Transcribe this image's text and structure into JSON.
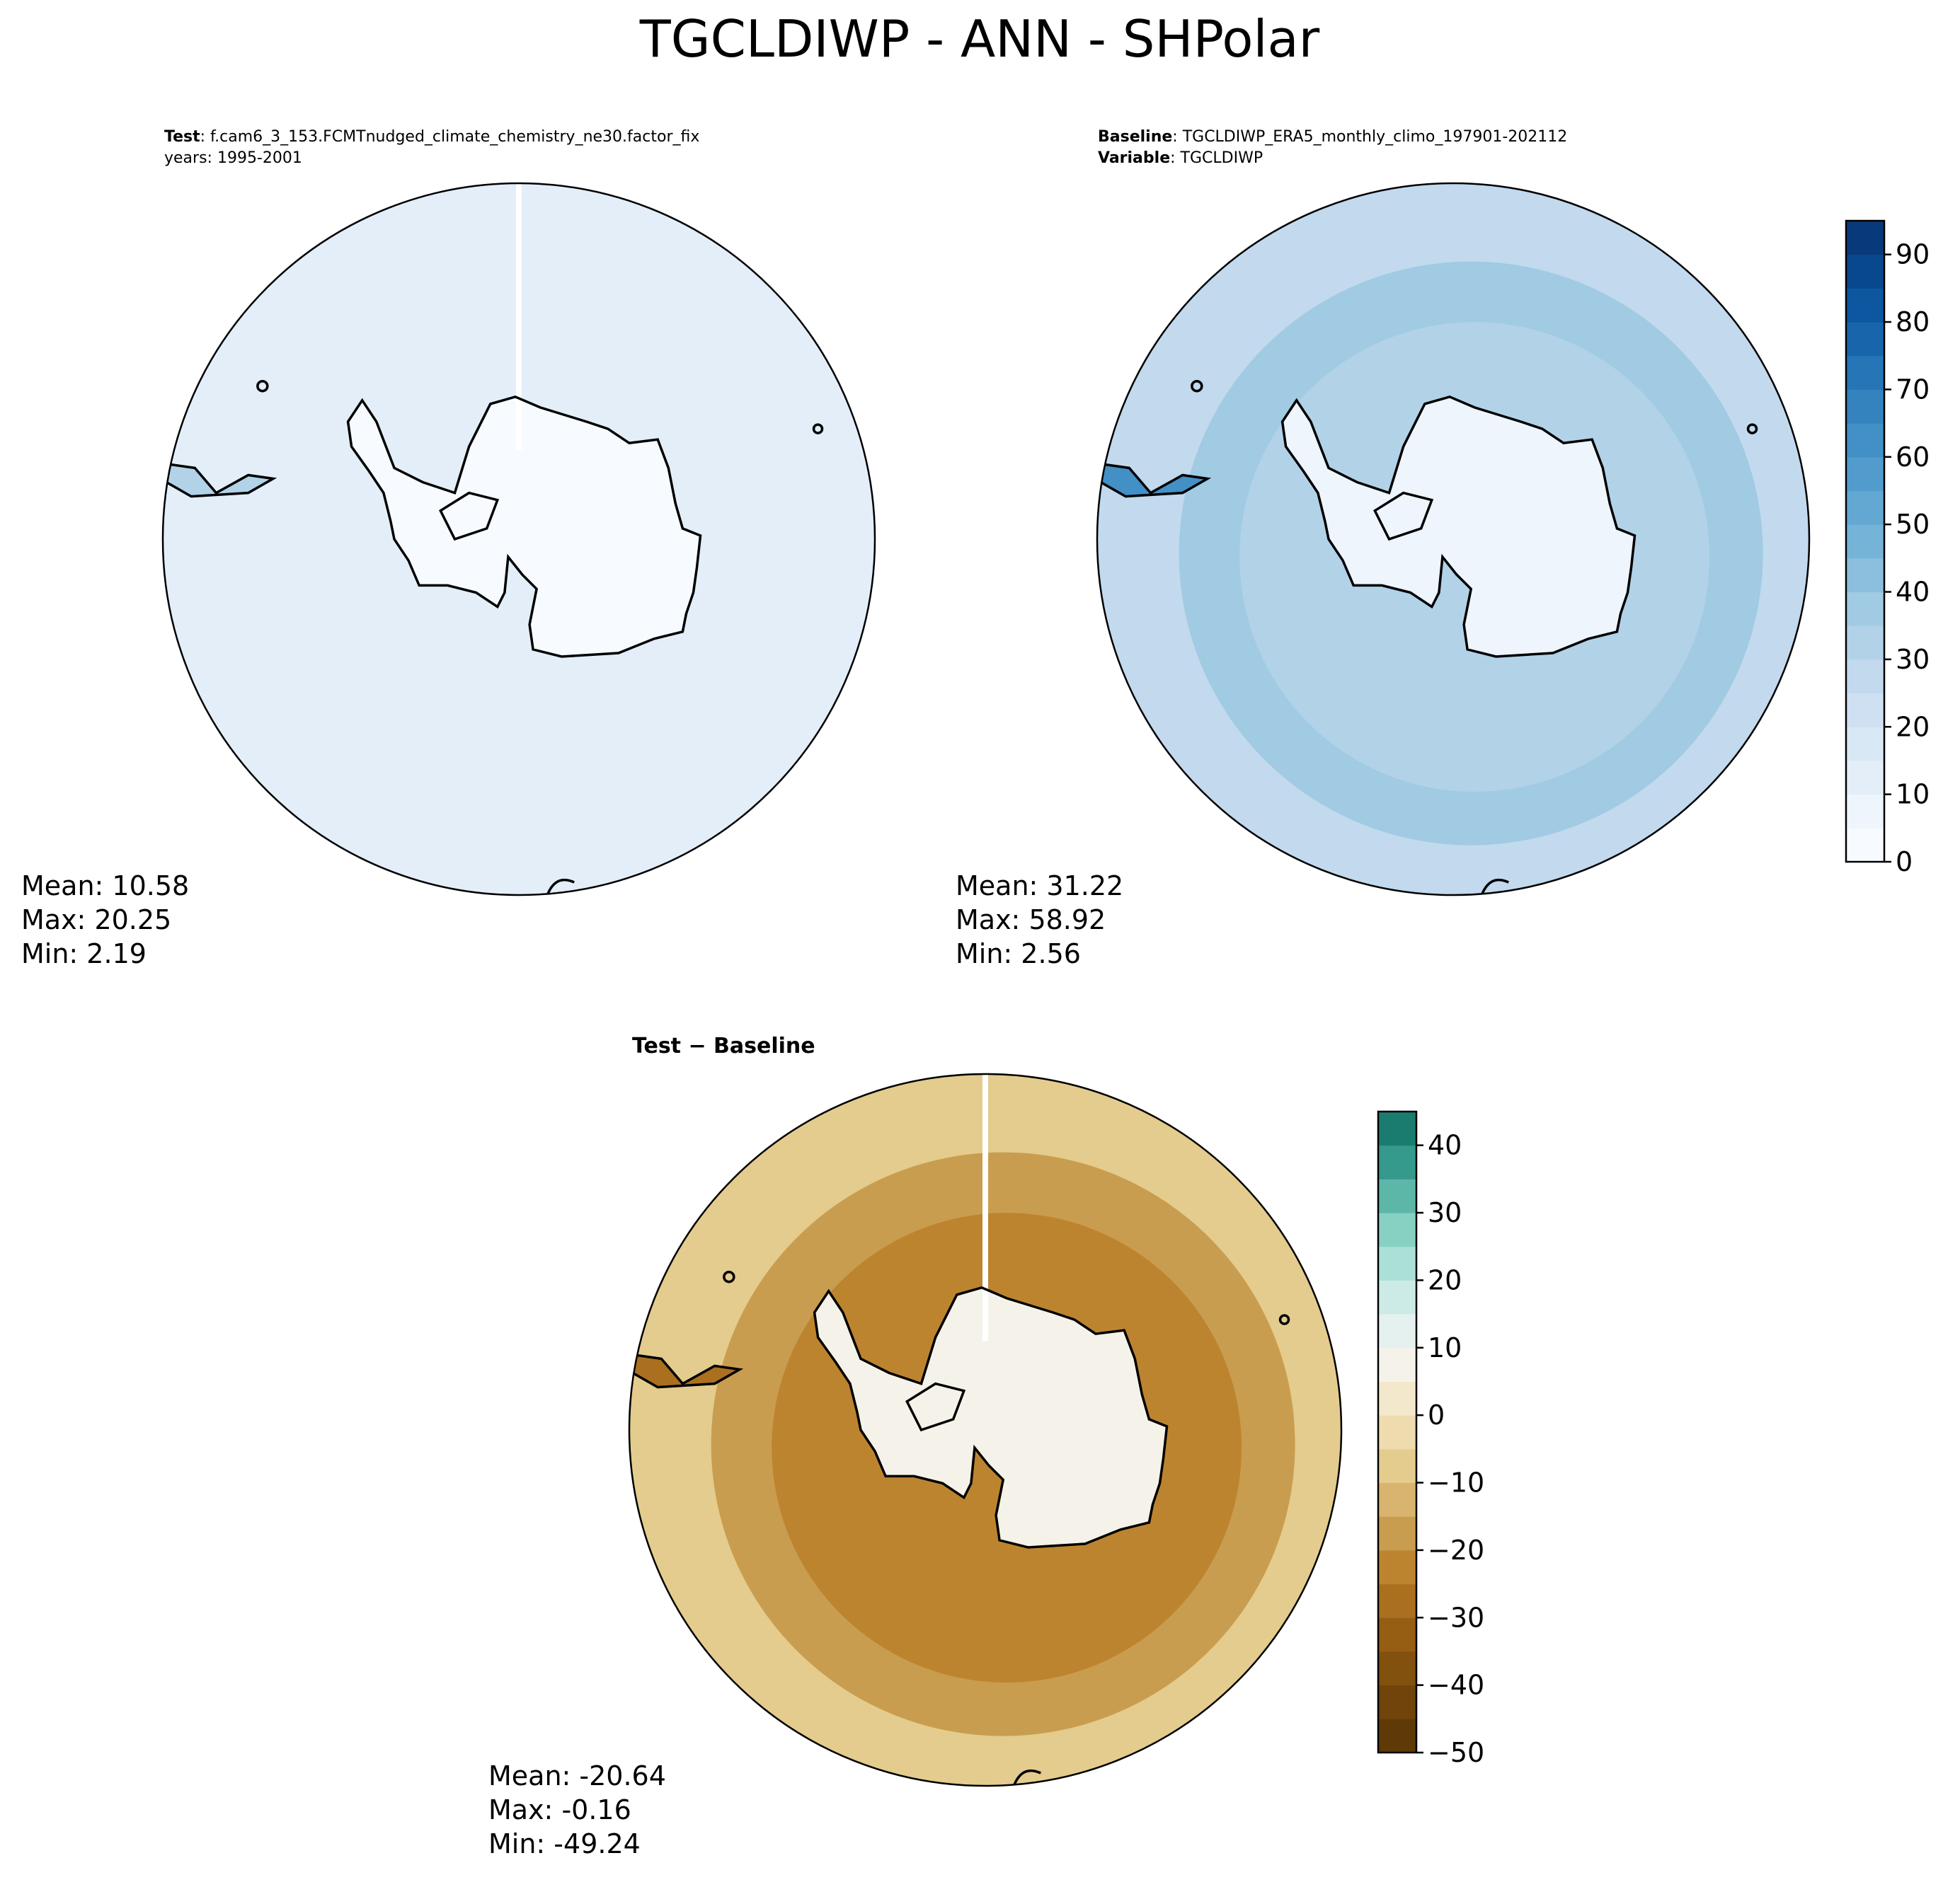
{
  "page": {
    "title": "TGCLDIWP - ANN - SHPolar"
  },
  "colors": {
    "blues": [
      "#f7fbff",
      "#eef5fc",
      "#e3eef9",
      "#d9e8f5",
      "#cee0f2",
      "#c2d9ee",
      "#b2d2e8",
      "#a0cbe2",
      "#8bbfdd",
      "#75b4d8",
      "#62a8d2",
      "#519ccc",
      "#4290c5",
      "#3482be",
      "#2575b7",
      "#1865ac",
      "#0d57a1",
      "#08488e",
      "#083a7a",
      "#08306b"
    ],
    "brbg": [
      "#5f3a06",
      "#70440a",
      "#81510d",
      "#965e13",
      "#aa701f",
      "#bd842f",
      "#c99d4f",
      "#d8b46e",
      "#e3cc8d",
      "#eedcaf",
      "#f4e8cc",
      "#f5f3e9",
      "#e5f1ef",
      "#cdebe6",
      "#abe0d7",
      "#87d1c3",
      "#5db7a9",
      "#35998c",
      "#1a7c6f",
      "#00604e",
      "#003c30"
    ],
    "coast": "#000000"
  },
  "chart_data": [
    {
      "type": "heatmap",
      "panel": "test",
      "header_lines": [
        {
          "key": "Test",
          "value": ": f.cam6_3_153.FCMTnudged_climate_chemistry_ne30.factor_fix"
        },
        {
          "key": "",
          "value": "years: 1995-2001"
        }
      ],
      "stats": [
        "Mean: 10.58",
        "Max: 20.25",
        "Min:  2.19"
      ],
      "mean": 10.58,
      "max": 20.25,
      "min": 2.19
    },
    {
      "type": "heatmap",
      "panel": "baseline",
      "header_lines": [
        {
          "key": "Baseline",
          "value": ": TGCLDIWP_ERA5_monthly_climo_197901-202112"
        },
        {
          "key": "Variable",
          "value": ": TGCLDIWP"
        }
      ],
      "stats": [
        "Mean: 31.22",
        "Max: 58.92",
        "Min:  2.56"
      ],
      "mean": 31.22,
      "max": 58.92,
      "min": 2.56,
      "colorbar": {
        "cmap": "Blues",
        "range": [
          0,
          95
        ],
        "step": 5,
        "ticks": [
          0,
          10,
          20,
          30,
          40,
          50,
          60,
          70,
          80,
          90
        ],
        "tick_labels": [
          "0",
          "10",
          "20",
          "30",
          "40",
          "50",
          "60",
          "70",
          "80",
          "90"
        ]
      }
    },
    {
      "type": "heatmap",
      "panel": "difference",
      "header_lines": [
        {
          "key": "Test − Baseline",
          "value": ""
        }
      ],
      "stats": [
        "Mean: -20.64",
        "Max: -0.16",
        "Min: -49.24"
      ],
      "mean": -20.64,
      "max": -0.16,
      "min": -49.24,
      "colorbar": {
        "cmap": "BrBG",
        "range": [
          -50,
          45
        ],
        "step": 5,
        "ticks": [
          -50,
          -40,
          -30,
          -20,
          -10,
          0,
          10,
          20,
          30,
          40
        ],
        "tick_labels": [
          "−50",
          "−40",
          "−30",
          "−20",
          "−10",
          "0",
          "10",
          "20",
          "30",
          "40"
        ]
      }
    }
  ]
}
